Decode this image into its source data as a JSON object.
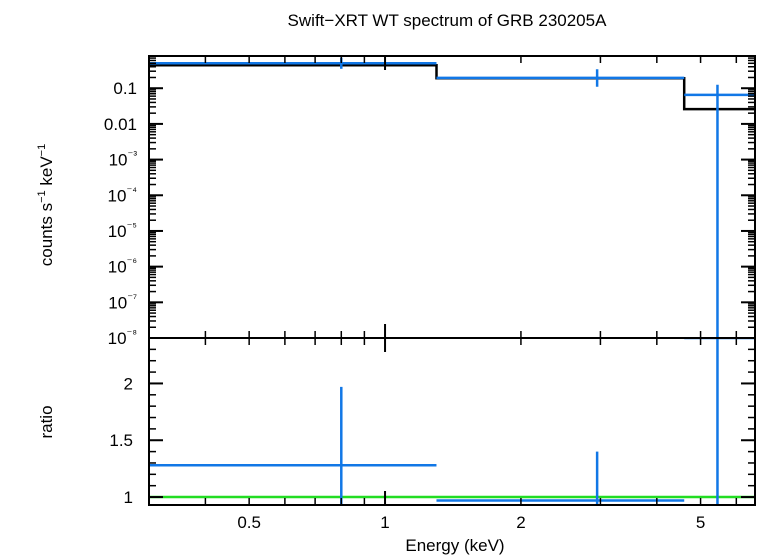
{
  "chart_data": [
    {
      "type": "line",
      "panel": "spectrum",
      "title": "Swift−XRT WT spectrum of GRB 230205A",
      "xlabel": "",
      "ylabel": "counts s⁻¹ keV⁻¹",
      "x_scale": "log",
      "y_scale": "log",
      "xlim": [
        0.3,
        6.6
      ],
      "ylim": [
        1e-08,
        0.8
      ],
      "ytick_labels": [
        "0.1",
        "0.01",
        "10⁻³",
        "10⁻⁴",
        "10⁻⁵",
        "10⁻⁶",
        "10⁻⁷",
        "10⁻⁸"
      ],
      "series": [
        {
          "kind": "data-crosses",
          "color": "#1177e6",
          "points": [
            {
              "x": 0.8,
              "xlo": 0.3,
              "xhi": 1.3,
              "y": 0.5,
              "ylo": 0.35,
              "yhi": 0.72
            },
            {
              "x": 2.95,
              "xlo": 1.3,
              "xhi": 4.6,
              "y": 0.195,
              "ylo": 0.11,
              "yhi": 0.34
            },
            {
              "x": 5.45,
              "xlo": 4.6,
              "xhi": 6.6,
              "y": 0.065,
              "ylo": 1e-08,
              "yhi": 0.125
            }
          ]
        },
        {
          "kind": "model-step",
          "color": "#000000",
          "edges": [
            0.3,
            1.3,
            4.6,
            6.6
          ],
          "values": [
            0.44,
            0.19,
            0.026
          ]
        }
      ]
    },
    {
      "type": "line",
      "panel": "ratio",
      "xlabel": "Energy (keV)",
      "ylabel": "ratio",
      "x_scale": "log",
      "xlim": [
        0.3,
        6.6
      ],
      "ylim": [
        0.93,
        2.4
      ],
      "xtick_labels": [
        "0.5",
        "1",
        "2",
        "5"
      ],
      "ytick_labels": [
        "1",
        "1.5",
        "2"
      ],
      "series": [
        {
          "kind": "data-crosses",
          "color": "#1177e6",
          "points": [
            {
              "x": 0.8,
              "xlo": 0.3,
              "xhi": 1.3,
              "y": 1.28,
              "ylo": 0.93,
              "yhi": 1.97
            },
            {
              "x": 2.95,
              "xlo": 1.3,
              "xhi": 4.6,
              "y": 0.97,
              "ylo": 0.93,
              "yhi": 1.4
            },
            {
              "x": 5.45,
              "xlo": 4.6,
              "xhi": 6.6,
              "y": 2.4,
              "ylo": 0.93,
              "yhi": 2.4
            }
          ]
        },
        {
          "kind": "reference-line",
          "color": "#22dd22",
          "y": 1.0
        }
      ]
    }
  ]
}
